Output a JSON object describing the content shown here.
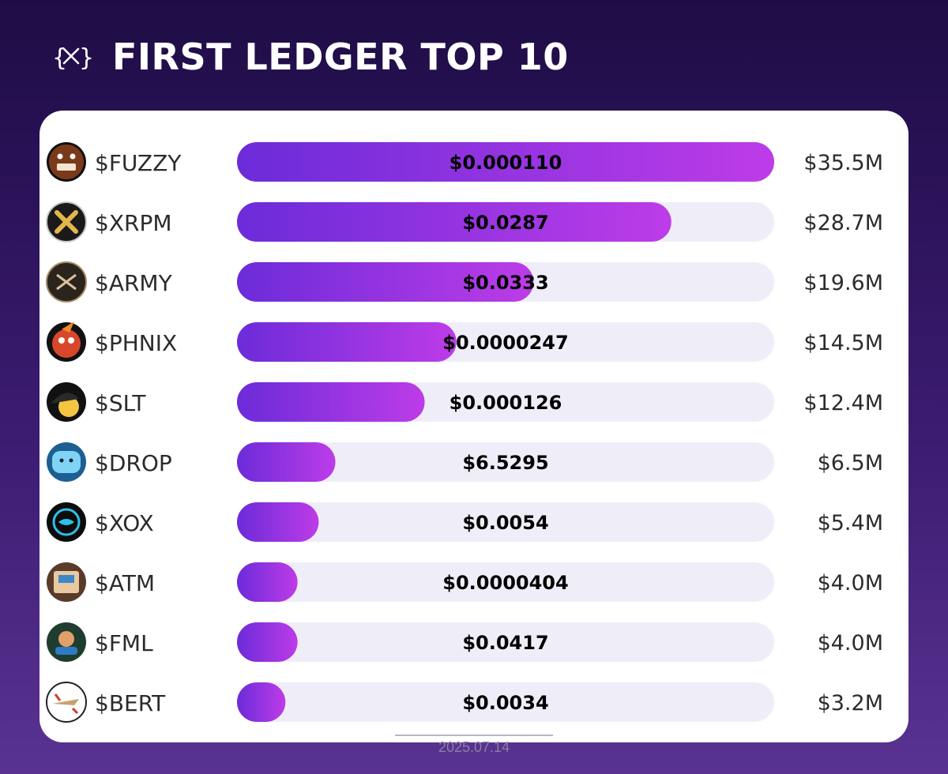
{
  "header": {
    "title": "FIRST LEDGER TOP 10",
    "logo_icon": "curly-braces-x-logo"
  },
  "footer": {
    "date": "2025.07.14"
  },
  "colors": {
    "bar_start": "#6c2bd9",
    "bar_end": "#bd3ce8",
    "track": "#efeef8",
    "text": "#2b2b2b"
  },
  "chart_data": {
    "type": "bar",
    "orientation": "horizontal",
    "categories": [
      "$FUZZY",
      "$XRPM",
      "$ARMY",
      "$PHNIX",
      "$SLT",
      "$DROP",
      "$XOX",
      "$ATM",
      "$FML",
      "$BERT"
    ],
    "values": [
      35.5,
      28.7,
      19.6,
      14.5,
      12.4,
      6.5,
      5.4,
      4.0,
      4.0,
      3.2
    ],
    "value_labels": [
      "$35.5M",
      "$28.7M",
      "$19.6M",
      "$14.5M",
      "$12.4M",
      "$6.5M",
      "$5.4M",
      "$4.0M",
      "$4.0M",
      "$3.2M"
    ],
    "prices": [
      "$0.000110",
      "$0.0287",
      "$0.0333",
      "$0.0000247",
      "$0.000126",
      "$6.5295",
      "$0.0054",
      "$0.0000404",
      "$0.0417",
      "$0.0034"
    ],
    "icons": [
      "fuzzy-bear-avatar",
      "xrpm-x-logo",
      "army-logo",
      "phnix-bird-avatar",
      "slt-cap-avatar",
      "drop-blob-avatar",
      "xox-logo",
      "atm-machine-avatar",
      "fml-florida-man-avatar",
      "bert-plane-avatar"
    ],
    "xlim": [
      0,
      35.5
    ],
    "grid": false,
    "legend": "none"
  }
}
